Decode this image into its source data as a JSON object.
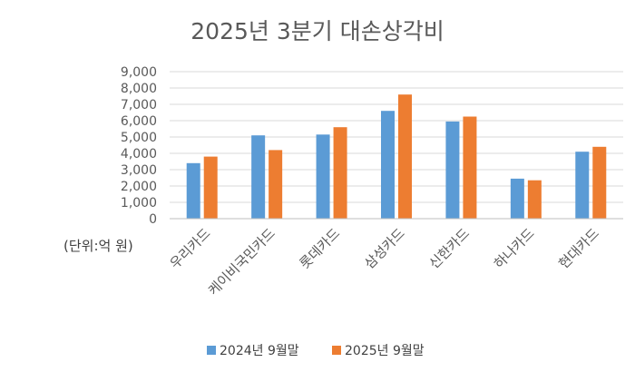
{
  "chart_data": {
    "type": "bar",
    "title": "2025년 3분기 대손상각비",
    "unit_note": "(단위:억 원)",
    "categories": [
      "우리카드",
      "케이비국민카드",
      "롯데카드",
      "삼성카드",
      "신한카드",
      "하나카드",
      "현대카드"
    ],
    "series": [
      {
        "name": "2024년 9월말",
        "color": "#5b9bd5",
        "values": [
          3400,
          5100,
          5150,
          6600,
          5950,
          2450,
          4100
        ]
      },
      {
        "name": "2025년 9월말",
        "color": "#ed7d31",
        "values": [
          3800,
          4200,
          5600,
          7600,
          6250,
          2350,
          4400
        ]
      }
    ],
    "ylim": [
      0,
      9000
    ],
    "yticks": [
      0,
      1000,
      2000,
      3000,
      4000,
      5000,
      6000,
      7000,
      8000,
      9000
    ],
    "ytick_labels": [
      "0",
      "1,000",
      "2,000",
      "3,000",
      "4,000",
      "5,000",
      "6,000",
      "7,000",
      "8,000",
      "9,000"
    ],
    "grid": true,
    "legend_position": "bottom"
  }
}
